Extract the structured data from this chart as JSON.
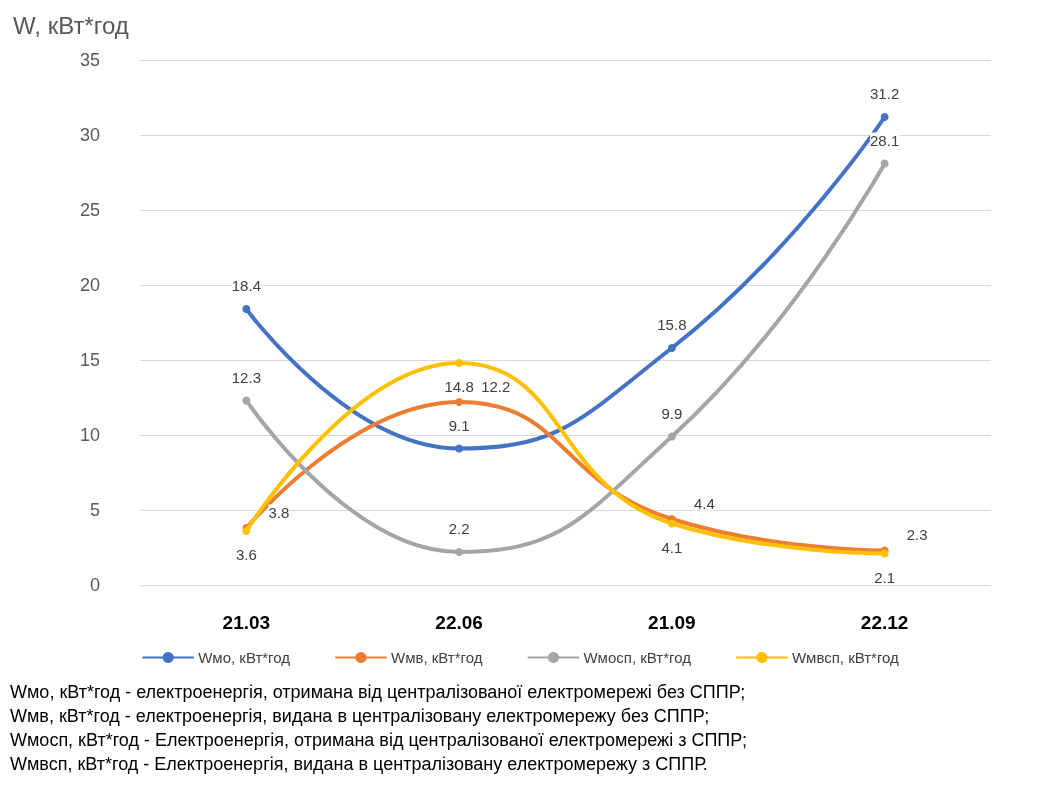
{
  "chart_data": {
    "type": "line",
    "ylabel": "W, кВт*год",
    "categories": [
      "21.03",
      "22.06",
      "21.09",
      "22.12"
    ],
    "series": [
      {
        "name": "Wмо, кВт*год",
        "color": "#4472c4",
        "values": [
          18.4,
          9.1,
          15.8,
          31.2
        ]
      },
      {
        "name": "Wмв, кВт*год",
        "color": "#ed7d31",
        "values": [
          3.8,
          12.2,
          4.4,
          2.3
        ]
      },
      {
        "name": "Wмосп, кВт*год",
        "color": "#a5a5a5",
        "values": [
          12.3,
          2.2,
          9.9,
          28.1
        ]
      },
      {
        "name": "Wмвсп, кВт*год",
        "color": "#ffc000",
        "values": [
          3.6,
          14.8,
          4.1,
          2.1
        ]
      }
    ],
    "ylim": [
      0,
      35
    ],
    "yticks": [
      0,
      5,
      10,
      15,
      20,
      25,
      30,
      35
    ],
    "grid": "y",
    "legend": "bottom",
    "marker": "circle",
    "line_style": "solid",
    "data_labels": true,
    "annotations": [
      "Wмо, кВт*год - електроенергія, отримана від централізованої електромережі без СППР;",
      "Wмв, кВт*год - електроенергія, видана в централізовану електромережу без СППР;",
      "Wмосп, кВт*год - Електроенергія, отримана від централізованої електромережі з СППР;",
      "Wмвсп, кВт*год - Електроенергія, видана в централізовану електромережу з СППР."
    ]
  }
}
